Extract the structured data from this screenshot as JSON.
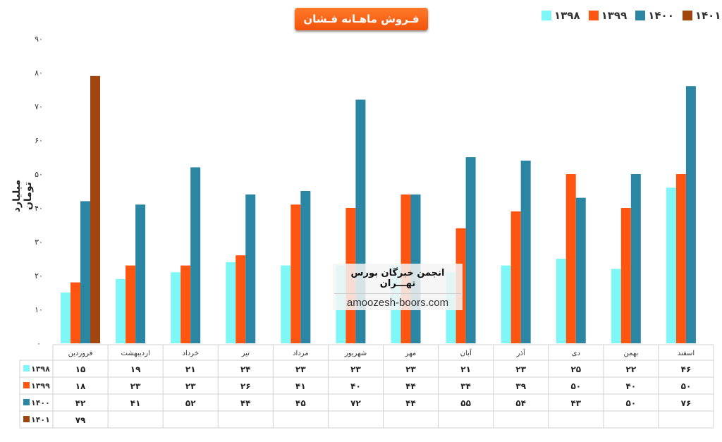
{
  "chart_data": {
    "type": "bar",
    "title": "فـروش ماهـانه فـشان",
    "ylabel": "میلیارد تومان",
    "ylim": [
      0,
      90
    ],
    "yticks": [
      "۰",
      "۱۰",
      "۲۰",
      "۳۰",
      "۴۰",
      "۵۰",
      "۶۰",
      "۷۰",
      "۸۰",
      "۹۰"
    ],
    "categories": [
      "فروردین",
      "اردیبهشت",
      "خرداد",
      "تیر",
      "مرداد",
      "شهریور",
      "مهر",
      "آبان",
      "آذر",
      "دی",
      "بهمن",
      "اسفند"
    ],
    "series": [
      {
        "name": "۱۳۹۸",
        "color": "#7ff7f7",
        "values": [
          15,
          19,
          21,
          24,
          23,
          23,
          23,
          21,
          23,
          25,
          22,
          46
        ],
        "labels": [
          "۱۵",
          "۱۹",
          "۲۱",
          "۲۴",
          "۲۳",
          "۲۳",
          "۲۳",
          "۲۱",
          "۲۳",
          "۲۵",
          "۲۲",
          "۴۶"
        ]
      },
      {
        "name": "۱۳۹۹",
        "color": "#ff5511",
        "values": [
          18,
          23,
          23,
          26,
          41,
          40,
          44,
          34,
          39,
          50,
          40,
          50
        ],
        "labels": [
          "۱۸",
          "۲۳",
          "۲۳",
          "۲۶",
          "۴۱",
          "۴۰",
          "۴۴",
          "۳۴",
          "۳۹",
          "۵۰",
          "۴۰",
          "۵۰"
        ]
      },
      {
        "name": "۱۴۰۰",
        "color": "#2a86a3",
        "values": [
          42,
          41,
          52,
          44,
          45,
          72,
          44,
          55,
          54,
          43,
          50,
          76
        ],
        "labels": [
          "۴۲",
          "۴۱",
          "۵۲",
          "۴۴",
          "۴۵",
          "۷۲",
          "۴۴",
          "۵۵",
          "۵۴",
          "۴۳",
          "۵۰",
          "۷۶"
        ]
      },
      {
        "name": "۱۴۰۱",
        "color": "#a0460e",
        "values": [
          79,
          null,
          null,
          null,
          null,
          null,
          null,
          null,
          null,
          null,
          null,
          null
        ],
        "labels": [
          "۷۹",
          "",
          "",
          "",
          "",
          "",
          "",
          "",
          "",
          "",
          "",
          ""
        ]
      }
    ],
    "legend_position": "top-right",
    "data_table": true,
    "grid": false
  },
  "watermark": {
    "title": "انجمن خبرگان بورس تهـــران",
    "url": "amoozesh-boors.com"
  }
}
